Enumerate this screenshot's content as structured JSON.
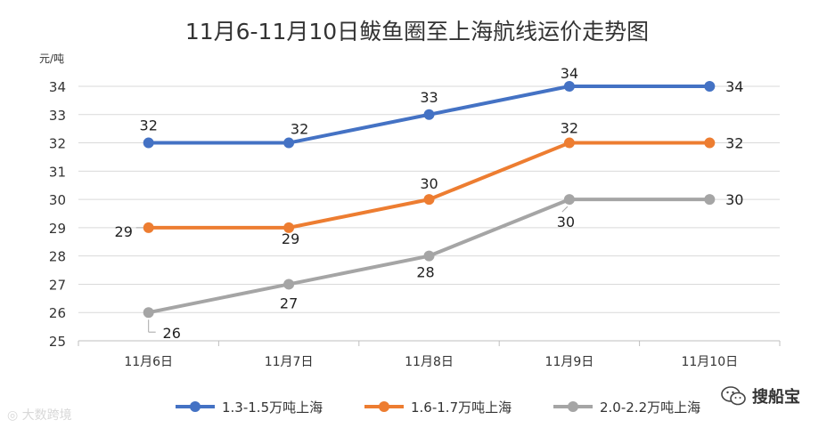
{
  "chart_data": {
    "type": "line",
    "title": "11月6-11月10日鲅鱼圈至上海航线运价走势图",
    "ylabel": "元/吨",
    "xlabel": "",
    "categories": [
      "11月6日",
      "11月7日",
      "11月8日",
      "11月9日",
      "11月10日"
    ],
    "ylim": [
      25,
      34
    ],
    "yticks": [
      25,
      26,
      27,
      28,
      29,
      30,
      31,
      32,
      33,
      34
    ],
    "grid": true,
    "legend_position": "bottom",
    "series": [
      {
        "name": "1.3-1.5万吨上海",
        "color": "#4472c4",
        "values": [
          32,
          32,
          33,
          34,
          34
        ]
      },
      {
        "name": "1.6-1.7万吨上海",
        "color": "#ed7d31",
        "values": [
          29,
          29,
          30,
          32,
          32
        ]
      },
      {
        "name": "2.0-2.2万吨上海",
        "color": "#a5a5a5",
        "values": [
          26,
          27,
          28,
          30,
          30
        ]
      }
    ]
  },
  "watermark": "大数跨境",
  "brand": {
    "name": "搜船宝"
  }
}
